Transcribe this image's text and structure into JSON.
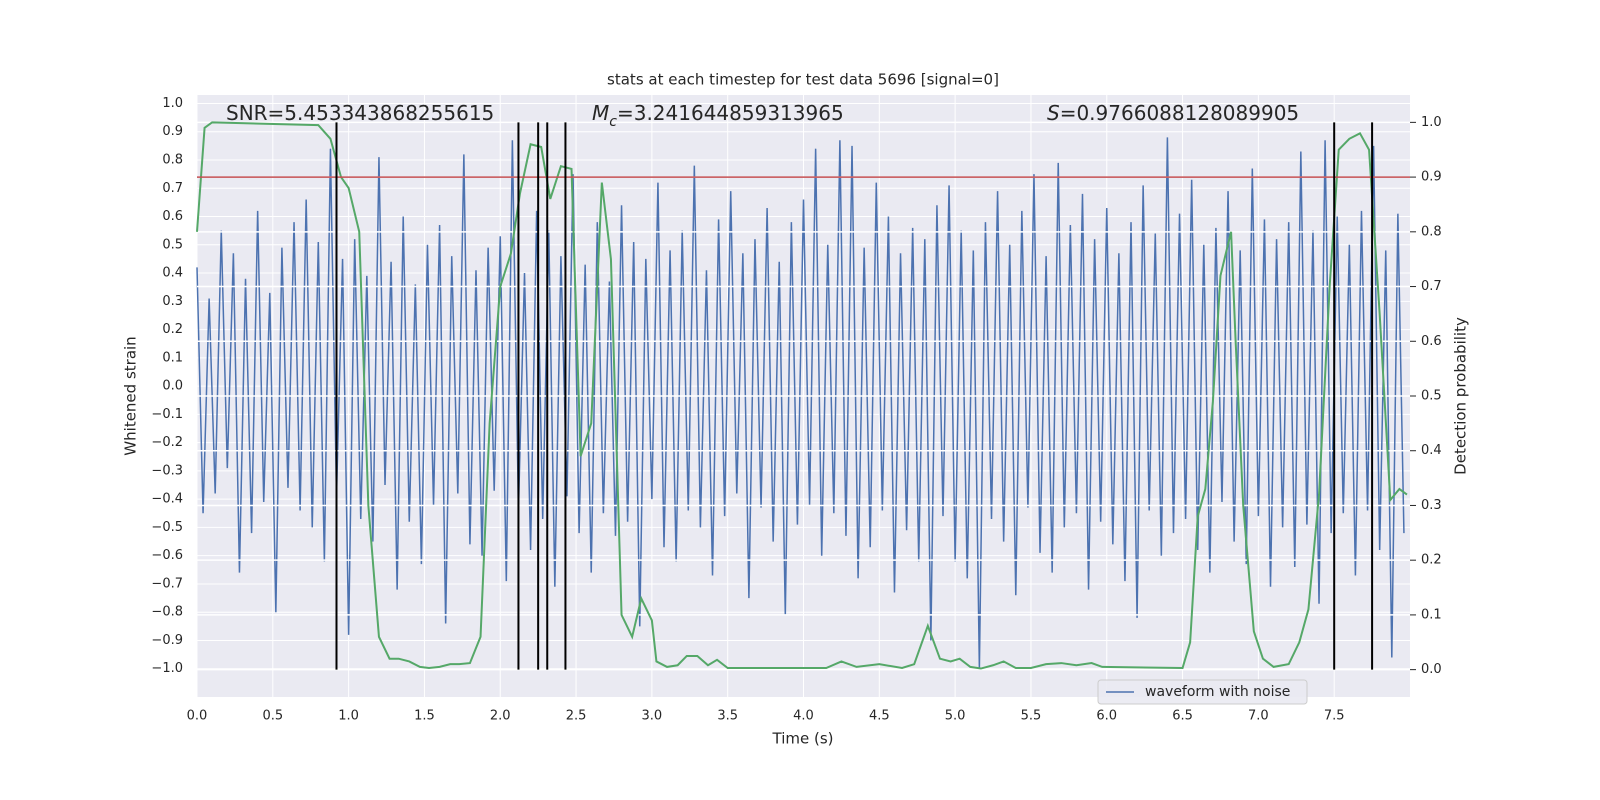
{
  "chart_data": {
    "type": "line",
    "title": "stats at each timestep for test data 5696 [signal=0]",
    "xlabel": "Time (s)",
    "ylabel": "Whitened strain",
    "y2label": "Detection probability",
    "annotations": [
      {
        "text": "SNR=5.453343868255615"
      },
      {
        "symbol": "M",
        "subscript": "c",
        "text": "=3.241644859313965"
      },
      {
        "symbol": "S",
        "text": "=0.9766088128089905"
      }
    ],
    "xlim": [
      0,
      8
    ],
    "ylim": [
      -1.1,
      1.03
    ],
    "y2lim": [
      -0.05,
      1.05
    ],
    "xticks": [
      {
        "value": 0,
        "label": "0.0"
      },
      0.5,
      {
        "value": 1,
        "label": "1.0"
      },
      1.5,
      {
        "value": 2,
        "label": "2.0"
      },
      2.5,
      {
        "value": 3,
        "label": "3.0"
      },
      3.5,
      {
        "value": 4,
        "label": "4.0"
      },
      4.5,
      {
        "value": 5,
        "label": "5.0"
      },
      5.5,
      {
        "value": 6,
        "label": "6.0"
      },
      6.5,
      {
        "value": 7,
        "label": "7.0"
      },
      7.5
    ],
    "yticks": [
      {
        "value": -1,
        "label": "−1.0"
      },
      {
        "value": -0.9,
        "label": "−0.9"
      },
      {
        "value": -0.8,
        "label": "−0.8"
      },
      {
        "value": -0.7,
        "label": "−0.7"
      },
      {
        "value": -0.6,
        "label": "−0.6"
      },
      {
        "value": -0.5,
        "label": "−0.5"
      },
      {
        "value": -0.4,
        "label": "−0.4"
      },
      {
        "value": -0.3,
        "label": "−0.3"
      },
      {
        "value": -0.2,
        "label": "−0.2"
      },
      {
        "value": -0.1,
        "label": "−0.1"
      },
      {
        "value": 0,
        "label": "0.0"
      },
      0.1,
      0.2,
      0.3,
      0.4,
      0.5,
      0.6,
      0.7,
      0.8,
      0.9,
      {
        "value": 1,
        "label": "1.0"
      }
    ],
    "y2ticks": [
      {
        "value": 0,
        "label": "0.0"
      },
      0.1,
      0.2,
      0.3,
      0.4,
      0.5,
      0.6,
      0.7,
      0.8,
      0.9,
      {
        "value": 1,
        "label": "1.0"
      }
    ],
    "grid": true,
    "legend": "lower right",
    "threshold": {
      "value": 0.9,
      "axis": "y2",
      "color": "#c44e52"
    },
    "vlines": {
      "x": [
        0.92,
        2.12,
        2.25,
        2.31,
        2.43,
        7.5,
        7.75
      ],
      "ymin": 0,
      "ymax": 1,
      "axis": "y2",
      "color": "#000000"
    },
    "series": [
      {
        "name": "waveform with noise",
        "color": "#4c72b0",
        "x": [
          0,
          0.04,
          0.08,
          0.12,
          0.16,
          0.2,
          0.24,
          0.28,
          0.32,
          0.36,
          0.4,
          0.44,
          0.48,
          0.52,
          0.56,
          0.6,
          0.64,
          0.68,
          0.72,
          0.76,
          0.8,
          0.84,
          0.88,
          0.92,
          0.96,
          1,
          1.04,
          1.08,
          1.12,
          1.16,
          1.2,
          1.24,
          1.28,
          1.32,
          1.36,
          1.4,
          1.44,
          1.48,
          1.52,
          1.56,
          1.6,
          1.64,
          1.68,
          1.72,
          1.76,
          1.8,
          1.84,
          1.88,
          1.92,
          1.96,
          2,
          2.04,
          2.08,
          2.12,
          2.16,
          2.2,
          2.24,
          2.28,
          2.32,
          2.36,
          2.4,
          2.44,
          2.48,
          2.52,
          2.56,
          2.6,
          2.64,
          2.68,
          2.72,
          2.76,
          2.8,
          2.84,
          2.88,
          2.92,
          2.96,
          3,
          3.04,
          3.08,
          3.12,
          3.16,
          3.2,
          3.24,
          3.28,
          3.32,
          3.36,
          3.4,
          3.44,
          3.48,
          3.52,
          3.56,
          3.6,
          3.64,
          3.68,
          3.72,
          3.76,
          3.8,
          3.84,
          3.88,
          3.92,
          3.96,
          4,
          4.04,
          4.08,
          4.12,
          4.16,
          4.2,
          4.24,
          4.28,
          4.32,
          4.36,
          4.4,
          4.44,
          4.48,
          4.52,
          4.56,
          4.6,
          4.64,
          4.68,
          4.72,
          4.76,
          4.8,
          4.84,
          4.88,
          4.92,
          4.96,
          5,
          5.04,
          5.08,
          5.12,
          5.16,
          5.2,
          5.24,
          5.28,
          5.32,
          5.36,
          5.4,
          5.44,
          5.48,
          5.52,
          5.56,
          5.6,
          5.64,
          5.68,
          5.72,
          5.76,
          5.8,
          5.84,
          5.88,
          5.92,
          5.96,
          6,
          6.04,
          6.08,
          6.12,
          6.16,
          6.2,
          6.24,
          6.28,
          6.32,
          6.36,
          6.4,
          6.44,
          6.48,
          6.52,
          6.56,
          6.6,
          6.64,
          6.68,
          6.72,
          6.76,
          6.8,
          6.84,
          6.88,
          6.92,
          6.96,
          7,
          7.04,
          7.08,
          7.12,
          7.16,
          7.2,
          7.24,
          7.28,
          7.32,
          7.36,
          7.4,
          7.44,
          7.48,
          7.52,
          7.56,
          7.6,
          7.64,
          7.68,
          7.72,
          7.76,
          7.8,
          7.84,
          7.88,
          7.92,
          7.96
        ],
        "values": [
          0.42,
          -0.45,
          0.31,
          -0.38,
          0.55,
          -0.29,
          0.47,
          -0.66,
          0.38,
          -0.52,
          0.62,
          -0.41,
          0.33,
          -0.8,
          0.49,
          -0.36,
          0.58,
          -0.44,
          0.66,
          -0.5,
          0.51,
          -0.62,
          0.84,
          -0.39,
          0.45,
          -0.88,
          0.52,
          -0.47,
          0.39,
          -0.55,
          0.81,
          -0.35,
          0.44,
          -0.72,
          0.6,
          -0.48,
          0.36,
          -0.63,
          0.5,
          -0.42,
          0.57,
          -0.84,
          0.46,
          -0.38,
          0.82,
          -0.56,
          0.41,
          -0.6,
          0.49,
          -0.37,
          0.53,
          -0.69,
          0.87,
          -0.44,
          0.4,
          -0.58,
          0.62,
          -0.47,
          0.55,
          -0.71,
          0.46,
          -0.39,
          0.75,
          -0.52,
          0.43,
          -0.66,
          0.58,
          -0.45,
          0.37,
          -0.53,
          0.64,
          -0.48,
          0.51,
          -0.85,
          0.45,
          -0.4,
          0.72,
          -0.57,
          0.48,
          -0.62,
          0.55,
          -0.44,
          0.78,
          -0.5,
          0.41,
          -0.67,
          0.59,
          -0.46,
          0.69,
          -0.38,
          0.47,
          -0.75,
          0.52,
          -0.43,
          0.63,
          -0.55,
          0.44,
          -0.81,
          0.58,
          -0.49,
          0.66,
          -0.42,
          0.84,
          -0.6,
          0.5,
          -0.45,
          0.87,
          -0.53,
          0.85,
          -0.68,
          0.49,
          -0.57,
          0.72,
          -0.44,
          0.6,
          -0.73,
          0.47,
          -0.51,
          0.56,
          -0.62,
          0.52,
          -0.9,
          0.64,
          -0.46,
          0.71,
          -0.62,
          0.55,
          -0.68,
          0.48,
          -1.0,
          0.58,
          -0.47,
          0.69,
          -0.55,
          0.5,
          -0.74,
          0.62,
          -0.43,
          0.75,
          -0.59,
          0.46,
          -0.66,
          0.79,
          -0.5,
          0.57,
          -0.45,
          0.68,
          -0.72,
          0.52,
          -0.48,
          0.63,
          -0.56,
          0.47,
          -0.69,
          0.58,
          -0.82,
          0.71,
          -0.44,
          0.54,
          -0.6,
          0.88,
          -0.52,
          0.61,
          -0.47,
          0.73,
          -0.58,
          0.5,
          -0.66,
          0.56,
          -0.41,
          0.69,
          -0.55,
          0.48,
          -0.63,
          0.77,
          -0.46,
          0.59,
          -0.71,
          0.52,
          -0.5,
          0.58,
          -0.64,
          0.83,
          -0.49,
          0.55,
          -0.77,
          0.87,
          -0.52,
          0.6,
          -0.45,
          0.5,
          -0.67,
          0.62,
          -0.44,
          0.85,
          -0.58,
          0.48,
          -0.96,
          0.61,
          -0.52
        ]
      },
      {
        "color": "#55a868",
        "axis": "y2",
        "x": [
          0,
          0.05,
          0.1,
          0.8,
          0.88,
          0.95,
          1.0,
          1.07,
          1.13,
          1.2,
          1.27,
          1.33,
          1.4,
          1.47,
          1.53,
          1.6,
          1.67,
          1.73,
          1.8,
          1.87,
          1.93,
          2.0,
          2.07,
          2.13,
          2.2,
          2.27,
          2.33,
          2.4,
          2.47,
          2.53,
          2.6,
          2.67,
          2.73,
          2.8,
          2.87,
          2.93,
          3.0,
          3.03,
          3.1,
          3.17,
          3.23,
          3.3,
          3.37,
          3.43,
          3.5,
          4.15,
          4.25,
          4.35,
          4.5,
          4.65,
          4.73,
          4.82,
          4.9,
          4.97,
          5.03,
          5.1,
          5.17,
          5.25,
          5.32,
          5.4,
          5.5,
          5.6,
          5.7,
          5.8,
          5.9,
          5.97,
          6.5,
          6.55,
          6.6,
          6.65,
          6.7,
          6.75,
          6.82,
          6.85,
          6.9,
          6.97,
          7.03,
          7.1,
          7.2,
          7.27,
          7.33,
          7.4,
          7.47,
          7.53,
          7.6,
          7.67,
          7.73,
          7.8,
          7.87,
          7.93,
          7.98
        ],
        "values": [
          0.8,
          0.99,
          1.0,
          0.995,
          0.97,
          0.9,
          0.88,
          0.8,
          0.3,
          0.06,
          0.02,
          0.02,
          0.015,
          0.005,
          0.003,
          0.005,
          0.01,
          0.01,
          0.012,
          0.06,
          0.45,
          0.7,
          0.76,
          0.87,
          0.96,
          0.955,
          0.86,
          0.92,
          0.915,
          0.39,
          0.45,
          0.89,
          0.75,
          0.1,
          0.06,
          0.13,
          0.09,
          0.015,
          0.005,
          0.008,
          0.025,
          0.025,
          0.008,
          0.018,
          0.003,
          0.003,
          0.015,
          0.005,
          0.01,
          0.003,
          0.01,
          0.08,
          0.02,
          0.015,
          0.02,
          0.005,
          0.002,
          0.008,
          0.015,
          0.003,
          0.003,
          0.01,
          0.012,
          0.008,
          0.012,
          0.005,
          0.003,
          0.05,
          0.28,
          0.33,
          0.49,
          0.72,
          0.8,
          0.6,
          0.3,
          0.07,
          0.02,
          0.005,
          0.01,
          0.05,
          0.11,
          0.32,
          0.7,
          0.95,
          0.97,
          0.98,
          0.95,
          0.65,
          0.31,
          0.33,
          0.32
        ]
      }
    ]
  }
}
